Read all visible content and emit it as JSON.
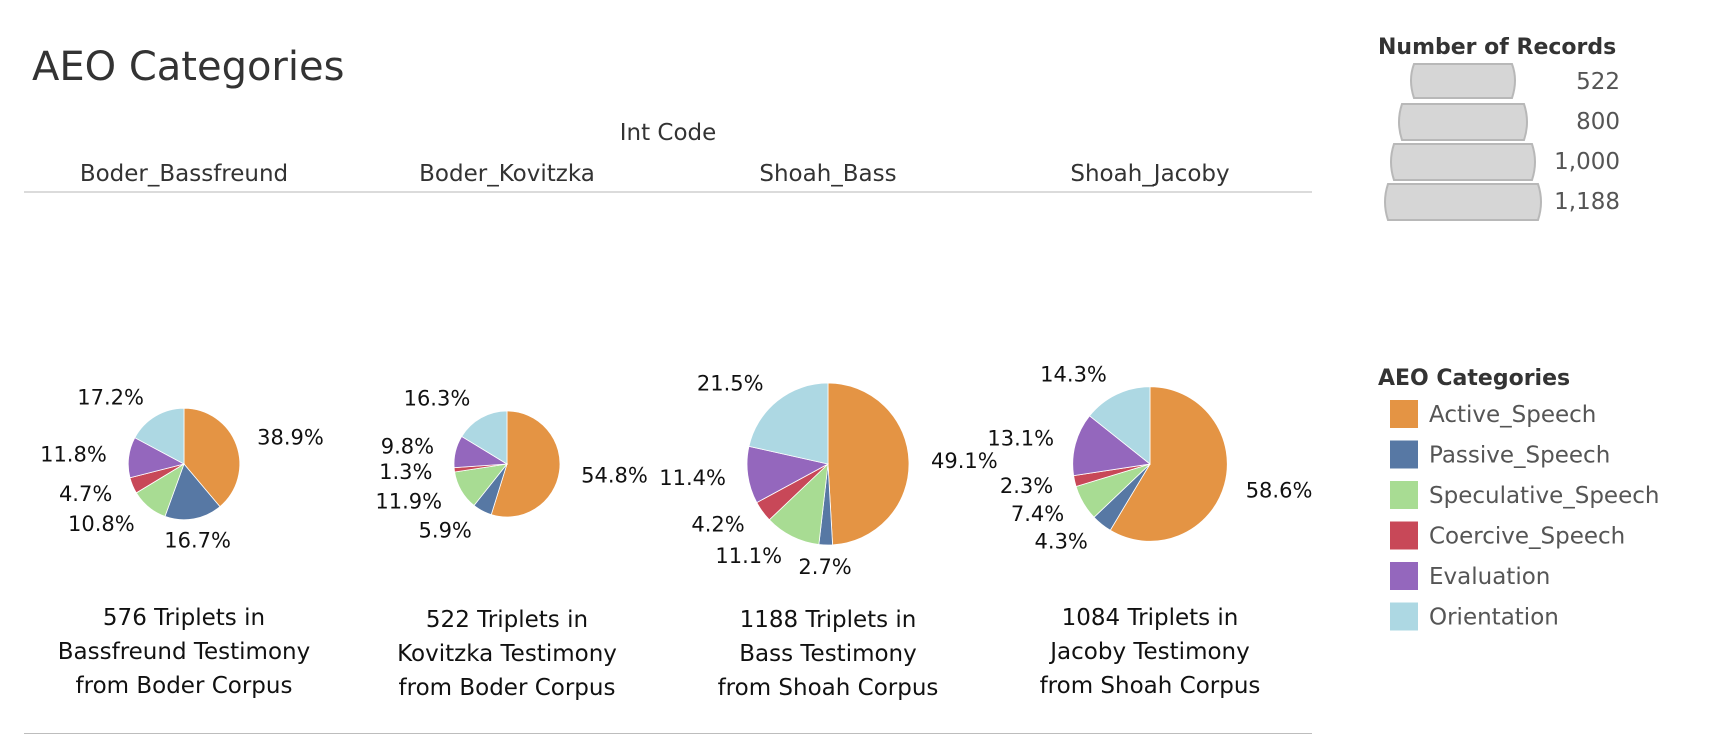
{
  "title": "AEO Categories",
  "column_header": "Int Code",
  "columns": [
    "Boder_Bassfreund",
    "Boder_Kovitzka",
    "Shoah_Bass",
    "Shoah_Jacoby"
  ],
  "size_legend": {
    "title": "Number of Records",
    "items": [
      "522",
      "800",
      "1,000",
      "1,188"
    ]
  },
  "color_legend": {
    "title": "AEO Categories",
    "items": [
      {
        "label": "Active_Speech",
        "color": "#E49444"
      },
      {
        "label": "Passive_Speech",
        "color": "#5778A4"
      },
      {
        "label": "Speculative_Speech",
        "color": "#A8DC93"
      },
      {
        "label": "Coercive_Speech",
        "color": "#C84858"
      },
      {
        "label": "Evaluation",
        "color": "#9467BD"
      },
      {
        "label": "Orientation",
        "color": "#ADD8E3"
      }
    ]
  },
  "chart_data": {
    "type": "pie",
    "size_by": "Number of Records",
    "categories": [
      "Active_Speech",
      "Passive_Speech",
      "Speculative_Speech",
      "Coercive_Speech",
      "Evaluation",
      "Orientation"
    ],
    "pies": [
      {
        "name": "Boder_Bassfreund",
        "records": 576,
        "values": [
          38.9,
          16.7,
          10.8,
          4.7,
          11.8,
          17.2
        ],
        "labels": [
          "38.9%",
          "16.7%",
          "10.8%",
          "4.7%",
          "11.8%",
          "17.2%"
        ],
        "caption": [
          "576 Triplets in",
          "Bassfreund Testimony",
          "from Boder Corpus"
        ]
      },
      {
        "name": "Boder_Kovitzka",
        "records": 522,
        "values": [
          54.8,
          5.9,
          11.9,
          1.3,
          9.8,
          16.3
        ],
        "labels": [
          "54.8%",
          "5.9%",
          "11.9%",
          "1.3%",
          "9.8%",
          "16.3%"
        ],
        "caption": [
          "522 Triplets in",
          "Kovitzka Testimony",
          "from Boder Corpus"
        ]
      },
      {
        "name": "Shoah_Bass",
        "records": 1188,
        "values": [
          49.1,
          2.7,
          11.1,
          4.2,
          11.4,
          21.5
        ],
        "labels": [
          "49.1%",
          "2.7%",
          "11.1%",
          "4.2%",
          "11.4%",
          "21.5%"
        ],
        "caption": [
          "1188 Triplets in",
          "Bass Testimony",
          "from Shoah Corpus"
        ]
      },
      {
        "name": "Shoah_Jacoby",
        "records": 1084,
        "values": [
          58.6,
          4.3,
          7.4,
          2.3,
          13.1,
          14.3
        ],
        "labels": [
          "58.6%",
          "4.3%",
          "7.4%",
          "2.3%",
          "13.1%",
          "14.3%"
        ],
        "caption": [
          "1084 Triplets in",
          "Jacoby Testimony",
          "from Shoah Corpus"
        ]
      }
    ]
  }
}
